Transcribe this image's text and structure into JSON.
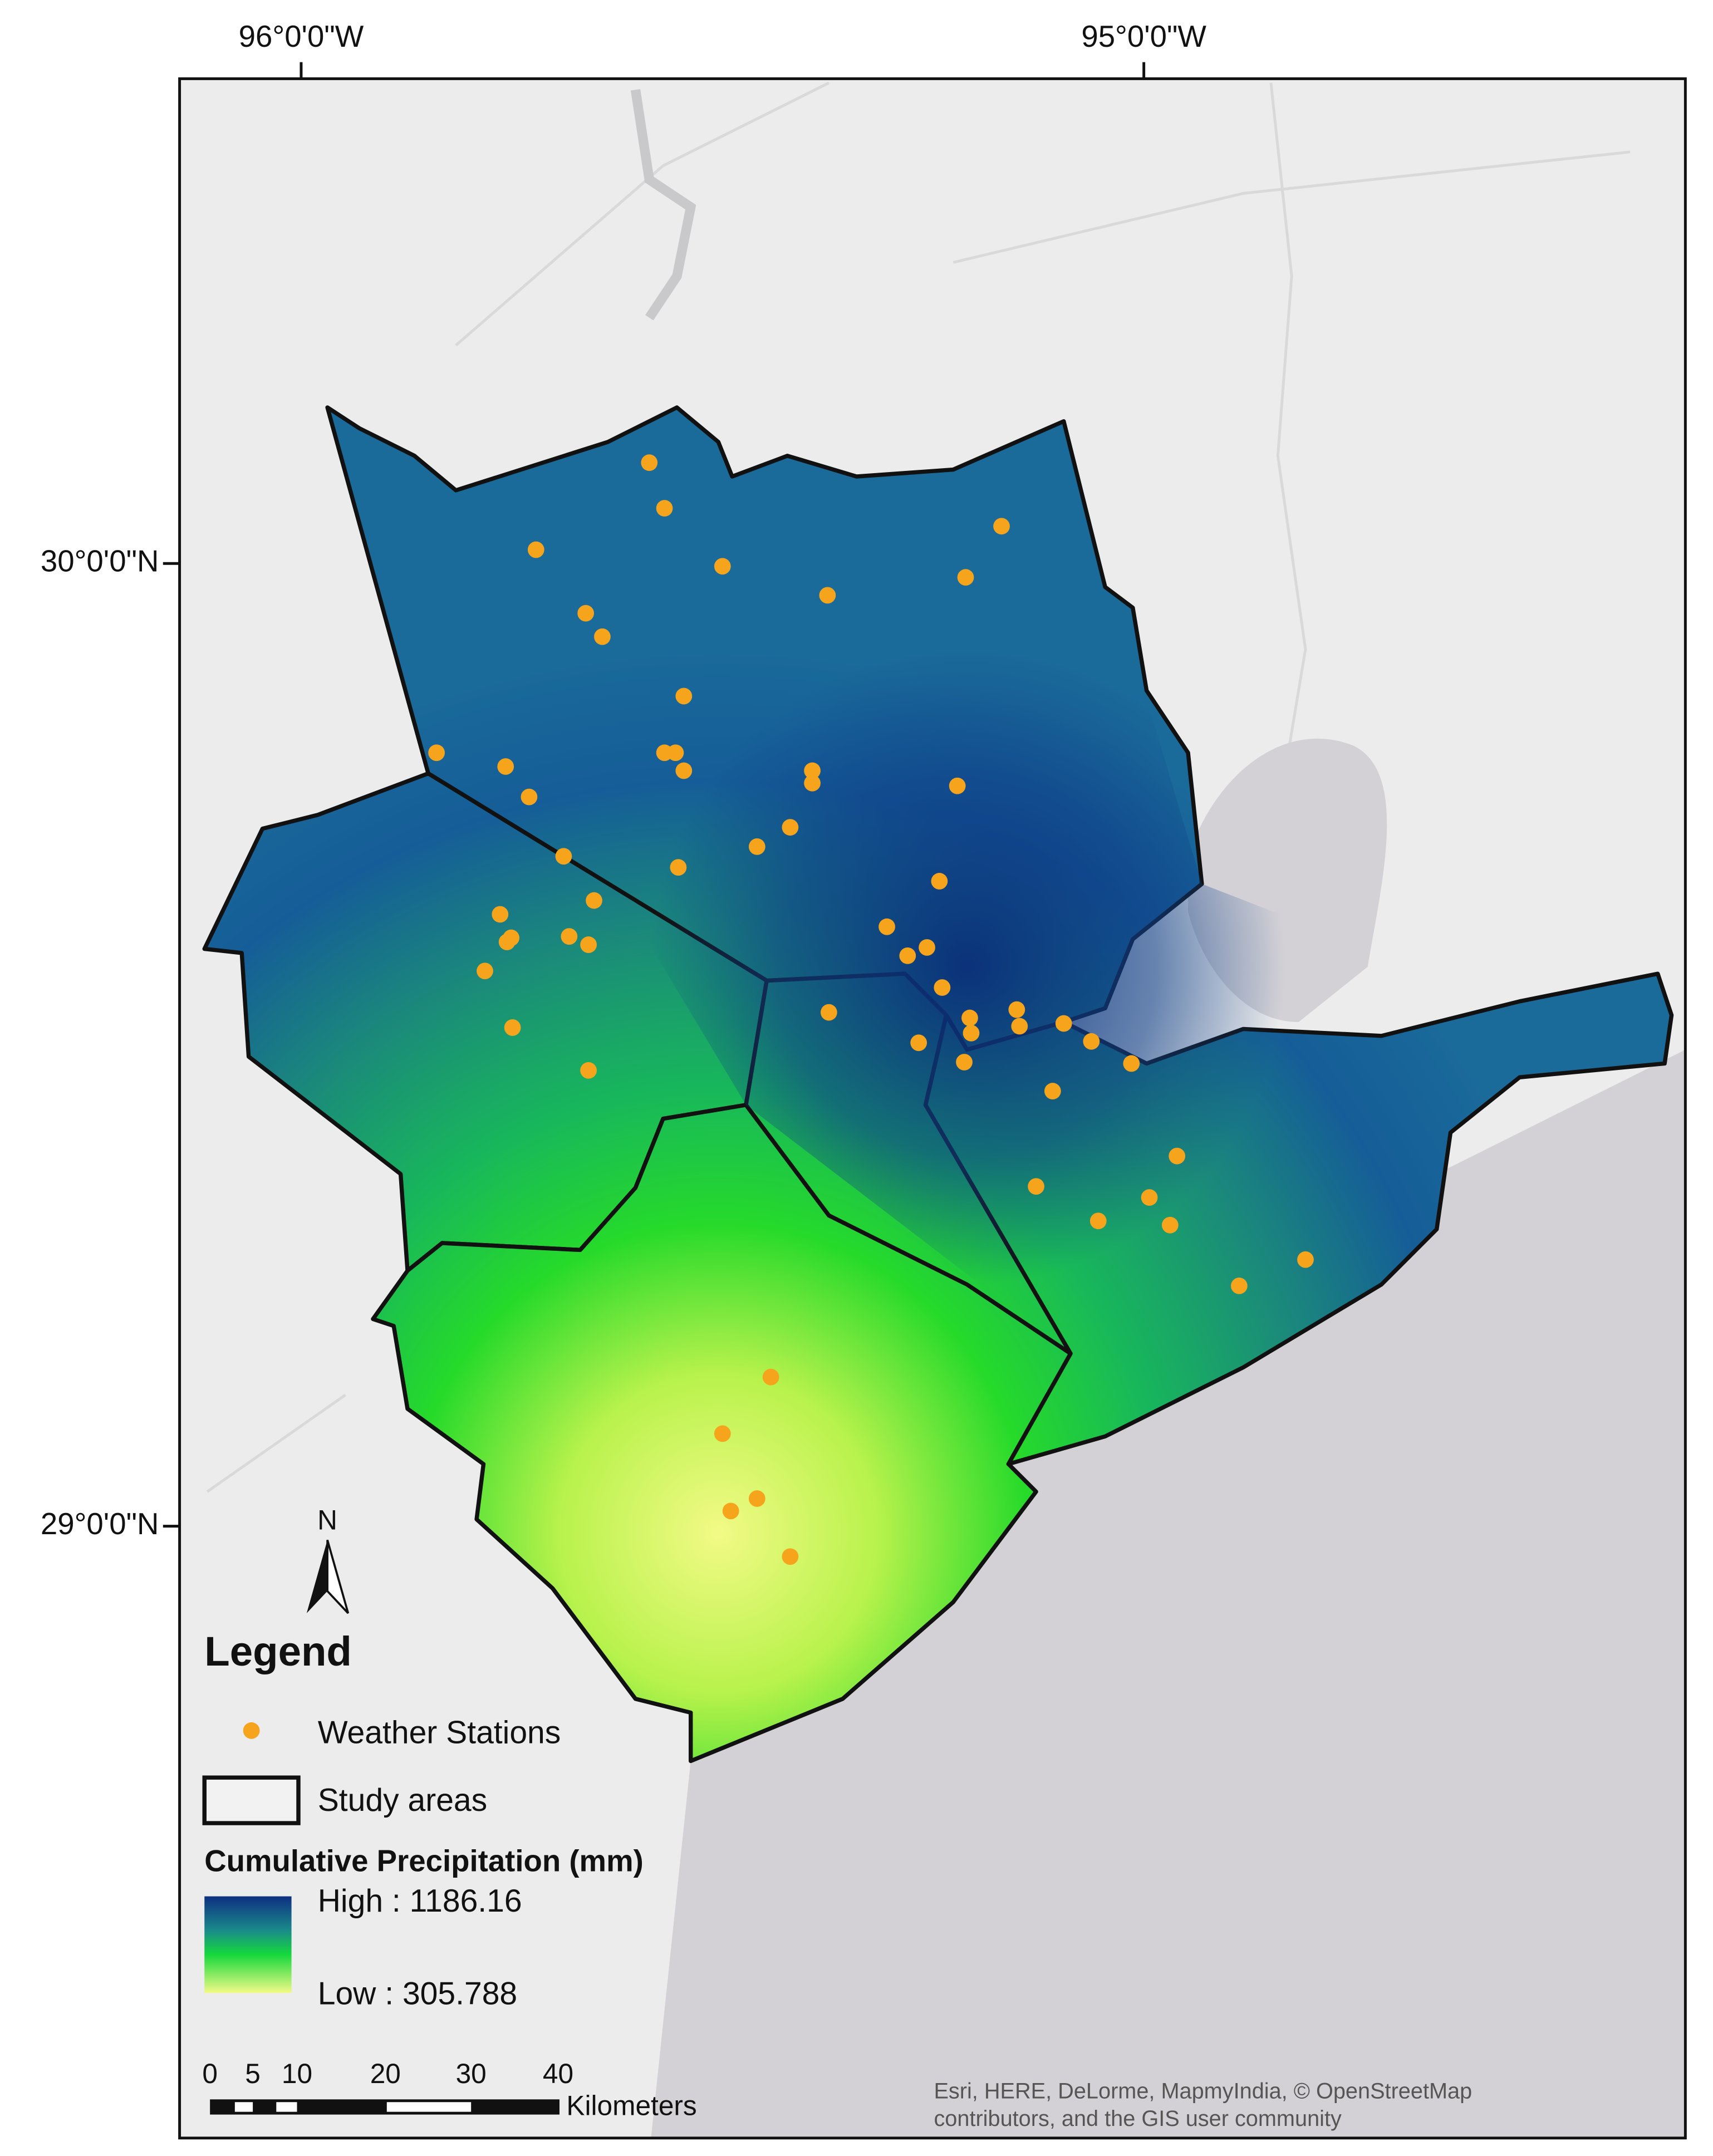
{
  "map": {
    "longitude_labels": [
      "96°0'0\"W",
      "95°0'0\"W"
    ],
    "latitude_labels": [
      "30°0'0\"N",
      "29°0'0\"N"
    ],
    "north_arrow": "N",
    "legend": {
      "title": "Legend",
      "items": [
        "Weather Stations",
        "Study areas"
      ],
      "precipitation": {
        "title": "Cumulative Precipitation (mm)",
        "high": "High : 1186.16",
        "low": "Low : 305.788"
      }
    },
    "scale_bar": {
      "ticks": [
        "0",
        "5",
        "10",
        "20",
        "30",
        "40"
      ],
      "unit": "Kilometers"
    },
    "attribution": [
      "Esri, HERE, DeLorme, MapmyIndia, © OpenStreetMap",
      "contributors, and the GIS user community"
    ]
  }
}
